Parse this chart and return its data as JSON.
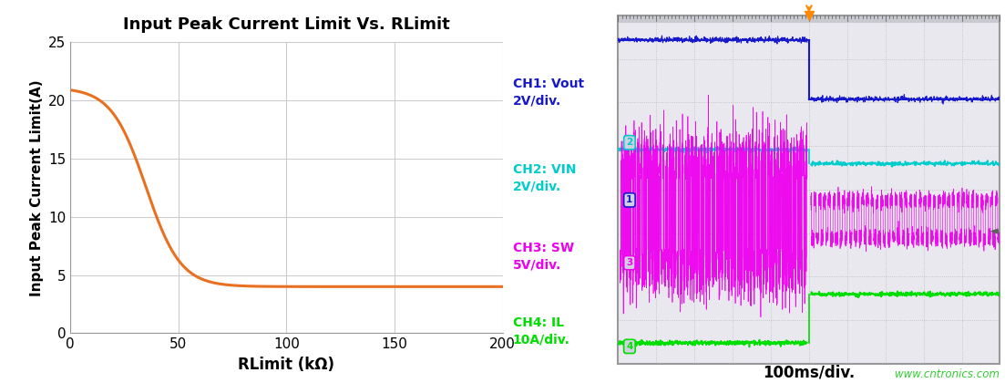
{
  "title": "Input Peak Current Limit Vs. RLimit",
  "xlabel": "RLimit (kΩ)",
  "ylabel": "Input Peak Current Limit(A)",
  "xlim": [
    0,
    200
  ],
  "ylim": [
    0,
    25
  ],
  "xticks": [
    0,
    50,
    100,
    150,
    200
  ],
  "yticks": [
    0,
    5,
    10,
    15,
    20,
    25
  ],
  "curve_color": "#E87020",
  "curve_start": 21.1,
  "curve_min": 4.0,
  "bg_color": "#ffffff",
  "grid_color": "#cccccc",
  "osc_screen_bg": "#e8e8ee",
  "osc_border_color": "#999999",
  "osc_grid_color": "#aaaaaa",
  "ch1_color": "#1818cc",
  "ch2_color": "#00cccc",
  "ch3_color": "#ee00ee",
  "ch4_color": "#00dd00",
  "ch1_label": "CH1: Vout\n2V/div.",
  "ch2_label": "CH2: VIN\n2V/div.",
  "ch3_label": "CH3: SW\n5V/div.",
  "ch4_label": "CH4: IL\n10A/div.",
  "time_label": "100ms/div.",
  "watermark": "www.cntronics.com",
  "transition_x": 0.5,
  "trigger_x": 0.5,
  "trigger_color": "#ff8800"
}
